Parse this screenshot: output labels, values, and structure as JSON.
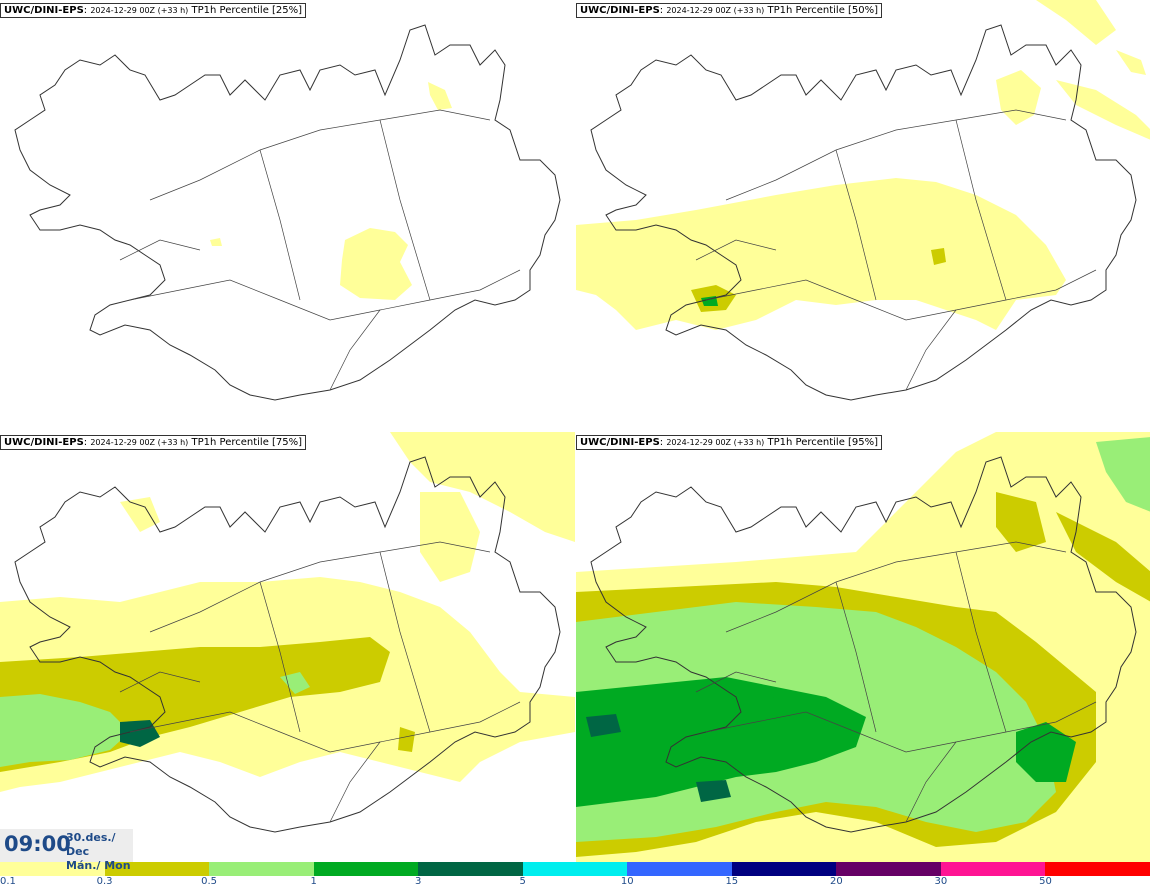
{
  "panels": [
    {
      "model": "UWC/DINI-EPS",
      "run": "2024-12-29 00Z (+33 h)",
      "variable": "TP1h Percentile [25%]"
    },
    {
      "model": "UWC/DINI-EPS",
      "run": "2024-12-29 00Z (+33 h)",
      "variable": "TP1h Percentile [50%]"
    },
    {
      "model": "UWC/DINI-EPS",
      "run": "2024-12-29 00Z (+33 h)",
      "variable": "TP1h Percentile [75%]"
    },
    {
      "model": "UWC/DINI-EPS",
      "run": "2024-12-29 00Z (+33 h)",
      "variable": "TP1h Percentile [95%]"
    }
  ],
  "valid_time": {
    "time": "09:00",
    "date_line1": "30.des./ Dec",
    "date_line2": "Mán./ Mon"
  },
  "legend": {
    "colors": [
      "#ffff99",
      "#cccc00",
      "#99ee77",
      "#00aa22",
      "#006644",
      "#00eeee",
      "#3366ff",
      "#000080",
      "#660066",
      "#ff1493",
      "#ff0000"
    ],
    "ticks": [
      "0.1",
      "0.3",
      "0.5",
      "1",
      "3",
      "5",
      "10",
      "15",
      "20",
      "30",
      "50"
    ]
  },
  "colors": {
    "light_yellow": "#ffff99",
    "olive": "#cccc00",
    "light_green": "#99ee77",
    "green": "#00aa22",
    "dark_green": "#006644",
    "label_blue": "#1e4a88"
  }
}
